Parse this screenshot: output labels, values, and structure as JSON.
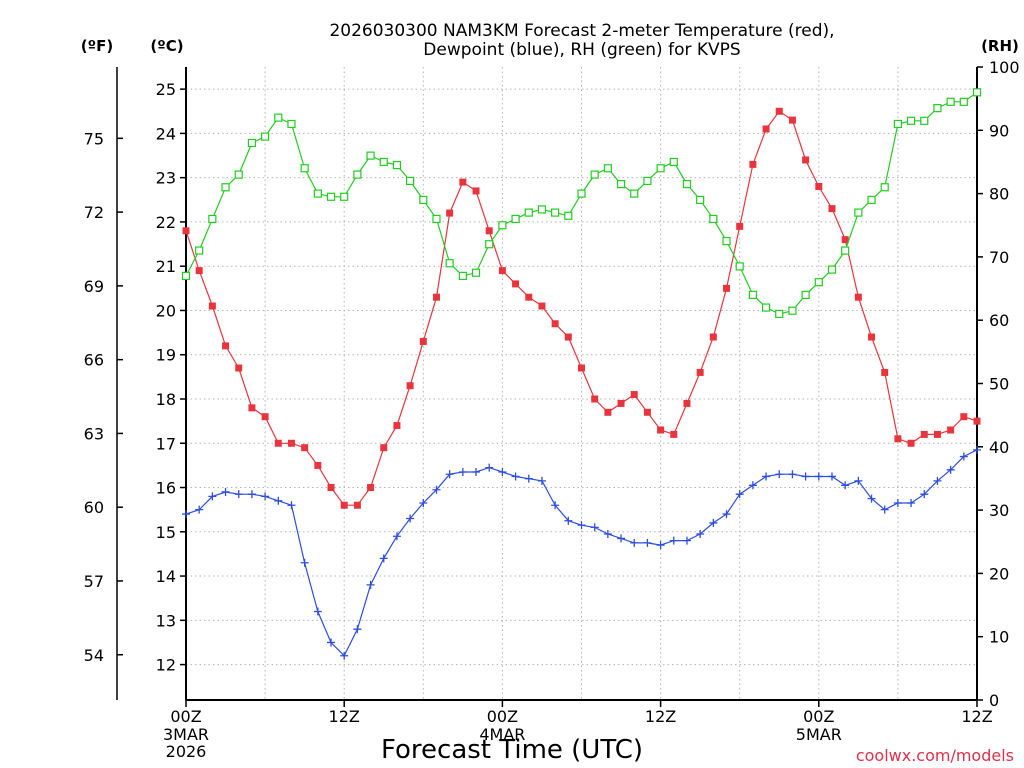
{
  "chart_data": {
    "type": "line",
    "title_line1": "2026030300 NAM3KM Forecast 2-meter Temperature (red),",
    "title_line2": "Dewpoint (blue), RH (green) for KVPS",
    "xlabel": "Forecast Time (UTC)",
    "credit": "coolwx.com/models",
    "unit_f": "(ºF)",
    "unit_c": "(ºC)",
    "unit_rh": "(RH)",
    "x_range_hours": [
      0,
      60
    ],
    "x_ticks": [
      {
        "hour": 0,
        "label": "00Z",
        "date": "3MAR",
        "year": "2026"
      },
      {
        "hour": 12,
        "label": "12Z",
        "date": "",
        "year": ""
      },
      {
        "hour": 24,
        "label": "00Z",
        "date": "4MAR",
        "year": ""
      },
      {
        "hour": 36,
        "label": "12Z",
        "date": "",
        "year": ""
      },
      {
        "hour": 48,
        "label": "00Z",
        "date": "5MAR",
        "year": ""
      },
      {
        "hour": 60,
        "label": "12Z",
        "date": "",
        "year": ""
      }
    ],
    "c_range": [
      11.2,
      25.5
    ],
    "c_ticks": [
      "12",
      "13",
      "14",
      "15",
      "16",
      "17",
      "18",
      "19",
      "20",
      "21",
      "22",
      "23",
      "24",
      "25"
    ],
    "f_ticks": [
      "54",
      "57",
      "60",
      "63",
      "66",
      "69",
      "72",
      "75"
    ],
    "rh_range": [
      0,
      100
    ],
    "rh_ticks": [
      "0",
      "10",
      "20",
      "30",
      "40",
      "50",
      "60",
      "70",
      "80",
      "90",
      "100"
    ],
    "series": [
      {
        "name": "2-meter Temperature",
        "unit": "C",
        "color": "#e8343c",
        "marker": "filled-square",
        "values": [
          21.8,
          20.9,
          20.1,
          19.2,
          18.7,
          17.8,
          17.6,
          17.0,
          17.0,
          16.9,
          16.5,
          16.0,
          15.6,
          15.6,
          16.0,
          16.9,
          17.4,
          18.3,
          19.3,
          20.3,
          22.2,
          22.9,
          22.7,
          21.8,
          20.9,
          20.6,
          20.3,
          20.1,
          19.7,
          19.4,
          18.7,
          18.0,
          17.7,
          17.9,
          18.1,
          17.7,
          17.3,
          17.2,
          17.9,
          18.6,
          19.4,
          20.5,
          21.9,
          23.3,
          24.1,
          24.5,
          24.3,
          23.4,
          22.8,
          22.3,
          21.6,
          20.3,
          19.4,
          18.6,
          17.1,
          17.0,
          17.2,
          17.2,
          17.3,
          17.6,
          17.5
        ]
      },
      {
        "name": "Dewpoint",
        "unit": "C",
        "color": "#2d4ee0",
        "marker": "plus",
        "values": [
          15.4,
          15.5,
          15.8,
          15.9,
          15.85,
          15.85,
          15.8,
          15.7,
          15.6,
          14.3,
          13.2,
          12.5,
          12.2,
          12.8,
          13.8,
          14.4,
          14.9,
          15.3,
          15.65,
          15.95,
          16.3,
          16.35,
          16.35,
          16.45,
          16.35,
          16.25,
          16.2,
          16.15,
          15.6,
          15.25,
          15.15,
          15.1,
          14.95,
          14.85,
          14.75,
          14.75,
          14.7,
          14.8,
          14.8,
          14.95,
          15.2,
          15.4,
          15.85,
          16.05,
          16.25,
          16.3,
          16.3,
          16.25,
          16.25,
          16.25,
          16.05,
          16.15,
          15.75,
          15.5,
          15.65,
          15.65,
          15.85,
          16.15,
          16.4,
          16.7,
          16.85
        ]
      },
      {
        "name": "RH",
        "unit": "%",
        "color": "#22cc22",
        "marker": "open-square",
        "values": [
          67,
          71,
          76,
          81,
          83,
          88,
          89,
          92,
          91,
          84,
          80,
          79.5,
          79.5,
          83,
          86,
          85,
          84.5,
          82,
          79,
          76,
          69,
          67,
          67.5,
          72,
          75,
          76,
          77,
          77.5,
          77,
          76.5,
          80,
          83,
          84,
          81.5,
          80,
          82,
          84,
          85,
          81.5,
          79,
          76,
          72.5,
          68.5,
          64,
          62,
          61,
          61.5,
          64,
          66,
          68,
          71,
          77,
          79,
          81,
          91,
          91.5,
          91.5,
          93.5,
          94.5,
          94.5,
          96
        ]
      }
    ]
  }
}
